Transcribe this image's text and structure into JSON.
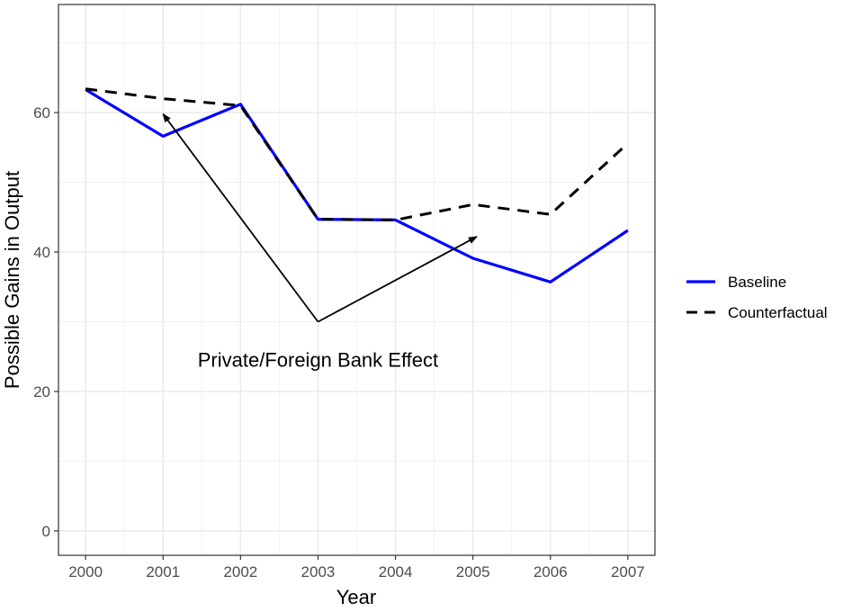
{
  "chart_data": {
    "type": "line",
    "xlabel": "Year",
    "ylabel": "Possible Gains in Output",
    "x": [
      2000,
      2001,
      2002,
      2003,
      2004,
      2005,
      2006,
      2007
    ],
    "xlim": [
      1999.65,
      2007.35
    ],
    "ylim": [
      -3.5,
      75.5
    ],
    "yticks": [
      0,
      20,
      40,
      60
    ],
    "grid": true,
    "legend_position": "right",
    "series": [
      {
        "name": "Baseline",
        "color": "#0000ff",
        "dash": "solid",
        "values": [
          63.3,
          56.6,
          61.2,
          44.7,
          44.6,
          39.1,
          35.7,
          43.1
        ]
      },
      {
        "name": "Counterfactual",
        "color": "#000000",
        "dash": "dashed",
        "values": [
          63.4,
          62.0,
          61.0,
          44.7,
          44.6,
          46.8,
          45.4,
          55.6
        ]
      }
    ],
    "annotation": {
      "text": "Private/Foreign Bank Effect",
      "anchor": [
        2003.0,
        30.0
      ],
      "arrow_targets": [
        [
          2001.0,
          59.8
        ],
        [
          2005.05,
          42.2
        ]
      ],
      "label_position": [
        2003.0,
        24.6
      ]
    }
  }
}
